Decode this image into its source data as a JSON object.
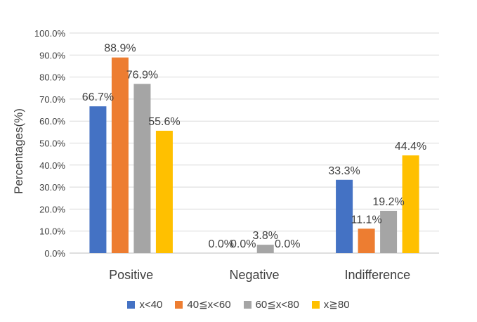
{
  "chart_data": {
    "type": "bar",
    "title": "",
    "xlabel": "",
    "ylabel": "Percentages(%)",
    "categories": [
      "Positive",
      "Negative",
      "Indifference"
    ],
    "ylim": [
      0,
      100
    ],
    "yticks": [
      "0.0%",
      "10.0%",
      "20.0%",
      "30.0%",
      "40.0%",
      "50.0%",
      "60.0%",
      "70.0%",
      "80.0%",
      "90.0%",
      "100.0%"
    ],
    "grid": true,
    "legend_position": "bottom",
    "series": [
      {
        "name": "x<40",
        "color": "#4472C4",
        "values": [
          66.7,
          0.0,
          33.3
        ],
        "labels": [
          "66.7%",
          "0.0%",
          "33.3%"
        ]
      },
      {
        "name": "40≦x<60",
        "color": "#ED7D31",
        "values": [
          88.9,
          0.0,
          11.1
        ],
        "labels": [
          "88.9%",
          "0.0%",
          "11.1%"
        ]
      },
      {
        "name": "60≦x<80",
        "color": "#A5A5A5",
        "values": [
          76.9,
          3.8,
          19.2
        ],
        "labels": [
          "76.9%",
          "3.8%",
          "19.2%"
        ]
      },
      {
        "name": "x≧80",
        "color": "#FFC000",
        "values": [
          55.6,
          0.0,
          44.4
        ],
        "labels": [
          "55.6%",
          "0.0%",
          "44.4%"
        ]
      }
    ]
  }
}
